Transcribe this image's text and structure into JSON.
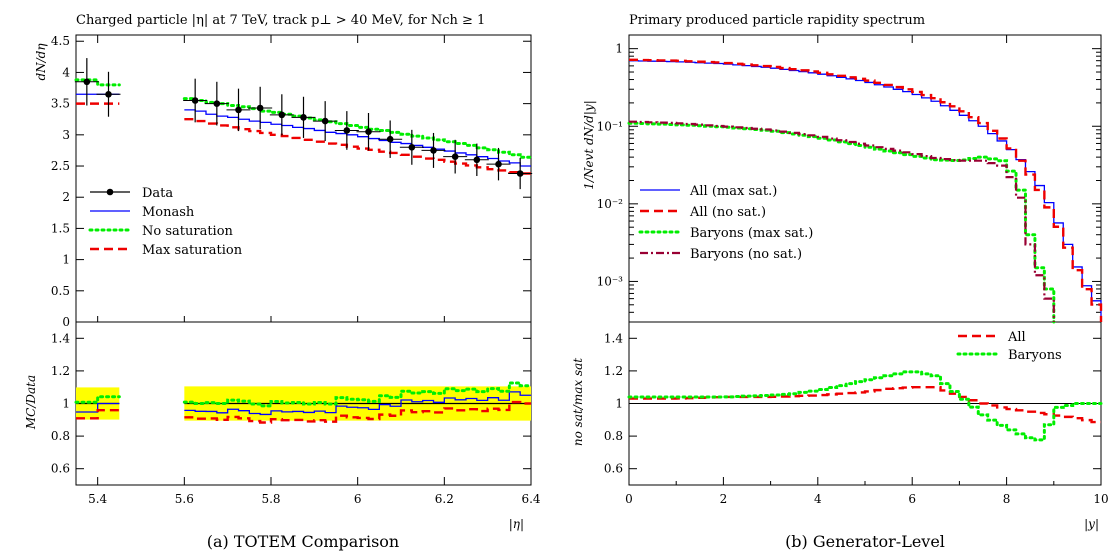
{
  "chart_data": [
    {
      "type": "line",
      "title": "Charged particle |η| at 7 TeV, track p⊥ > 40 MeV, for Nch ≥ 1",
      "caption": "(a) TOTEM Comparison",
      "xlabel": "|η|",
      "ylabel": "dN/dη",
      "ratio_ylabel": "MC/Data",
      "xlim": [
        5.35,
        6.4
      ],
      "ylim": [
        0,
        4.6
      ],
      "ratio_ylim": [
        0.5,
        1.5
      ],
      "xticks": [
        "5.4",
        "5.6",
        "5.8",
        "6",
        "6.2",
        "6.4"
      ],
      "yticks": [
        "0",
        "0.5",
        "1",
        "1.5",
        "2",
        "2.5",
        "3",
        "3.5",
        "4",
        "4.5"
      ],
      "ratio_yticks": [
        "0.6",
        "0.8",
        "1",
        "1.2",
        "1.4"
      ],
      "legend_position": "middle-left",
      "bins": [
        [
          5.35,
          5.4
        ],
        [
          5.4,
          5.45
        ],
        [
          5.6,
          5.625
        ],
        [
          5.625,
          5.65
        ],
        [
          5.65,
          5.675
        ],
        [
          5.675,
          5.7
        ],
        [
          5.7,
          5.725
        ],
        [
          5.725,
          5.75
        ],
        [
          5.75,
          5.775
        ],
        [
          5.775,
          5.8
        ],
        [
          5.8,
          5.825
        ],
        [
          5.825,
          5.85
        ],
        [
          5.85,
          5.875
        ],
        [
          5.875,
          5.9
        ],
        [
          5.9,
          5.925
        ],
        [
          5.925,
          5.95
        ],
        [
          5.95,
          5.975
        ],
        [
          5.975,
          6.0
        ],
        [
          6.0,
          6.025
        ],
        [
          6.025,
          6.05
        ],
        [
          6.05,
          6.075
        ],
        [
          6.075,
          6.1
        ],
        [
          6.1,
          6.125
        ],
        [
          6.125,
          6.15
        ],
        [
          6.15,
          6.175
        ],
        [
          6.175,
          6.2
        ],
        [
          6.2,
          6.225
        ],
        [
          6.225,
          6.25
        ],
        [
          6.25,
          6.275
        ],
        [
          6.275,
          6.3
        ],
        [
          6.3,
          6.325
        ],
        [
          6.325,
          6.35
        ],
        [
          6.35,
          6.375
        ],
        [
          6.375,
          6.4
        ]
      ],
      "data_points": {
        "name": "Data",
        "x": [
          5.375,
          5.425,
          5.625,
          5.675,
          5.725,
          5.775,
          5.825,
          5.875,
          5.925,
          5.975,
          6.025,
          6.075,
          6.125,
          6.175,
          6.225,
          6.275,
          6.325,
          6.375
        ],
        "y": [
          3.85,
          3.65,
          3.55,
          3.5,
          3.4,
          3.43,
          3.32,
          3.28,
          3.22,
          3.07,
          3.05,
          2.93,
          2.8,
          2.75,
          2.65,
          2.6,
          2.53,
          2.38
        ],
        "err": [
          0.38,
          0.36,
          0.35,
          0.35,
          0.34,
          0.34,
          0.33,
          0.33,
          0.32,
          0.31,
          0.3,
          0.3,
          0.28,
          0.28,
          0.27,
          0.26,
          0.26,
          0.25
        ]
      },
      "series": [
        {
          "name": "Monash",
          "color": "#0000ff",
          "style": "solid",
          "values": [
            3.65,
            3.65,
            3.4,
            3.38,
            3.33,
            3.3,
            3.28,
            3.25,
            3.22,
            3.2,
            3.17,
            3.15,
            3.12,
            3.1,
            3.07,
            3.04,
            3.02,
            3.0,
            2.97,
            2.94,
            2.91,
            2.88,
            2.86,
            2.83,
            2.8,
            2.77,
            2.74,
            2.71,
            2.68,
            2.65,
            2.62,
            2.58,
            2.55,
            2.5
          ]
        },
        {
          "name": "No saturation",
          "color": "#00ee00",
          "style": "dotted",
          "values": [
            3.88,
            3.8,
            3.58,
            3.55,
            3.52,
            3.5,
            3.47,
            3.45,
            3.42,
            3.38,
            3.36,
            3.33,
            3.3,
            3.27,
            3.24,
            3.21,
            3.18,
            3.15,
            3.12,
            3.09,
            3.07,
            3.04,
            3.01,
            2.98,
            2.95,
            2.92,
            2.89,
            2.86,
            2.83,
            2.79,
            2.76,
            2.72,
            2.68,
            2.64
          ]
        },
        {
          "name": "Max saturation",
          "color": "#ee0000",
          "style": "dashed",
          "values": [
            3.5,
            3.5,
            3.25,
            3.22,
            3.18,
            3.15,
            3.12,
            3.09,
            3.06,
            3.03,
            3.0,
            2.98,
            2.95,
            2.92,
            2.89,
            2.86,
            2.84,
            2.81,
            2.78,
            2.76,
            2.73,
            2.71,
            2.68,
            2.65,
            2.62,
            2.6,
            2.57,
            2.54,
            2.51,
            2.48,
            2.45,
            2.43,
            2.4,
            2.38
          ]
        }
      ],
      "legend": [
        "Data",
        "Monash",
        "No saturation",
        "Max saturation"
      ],
      "colors": {
        "data": "#000000",
        "band": "#ffff00"
      }
    },
    {
      "type": "line",
      "title": "Primary produced particle rapidity spectrum",
      "caption": "(b) Generator-Level",
      "xlabel": "|y|",
      "ylabel": "1/Nevt dN/d|y|",
      "ratio_ylabel": "no sat/max sat",
      "log_y": true,
      "xlim": [
        0,
        10
      ],
      "ylim": [
        0.0003,
        1.5
      ],
      "ratio_ylim": [
        0.5,
        1.5
      ],
      "xticks": [
        "0",
        "2",
        "4",
        "6",
        "8",
        "10"
      ],
      "yticks": [
        "1",
        "10⁻¹",
        "10⁻²",
        "10⁻³"
      ],
      "ratio_yticks": [
        "0.6",
        "0.8",
        "1",
        "1.2",
        "1.4"
      ],
      "legend_position": "bottom-left",
      "ratio_legend": [
        "All",
        "Baryons"
      ],
      "series": [
        {
          "name": "All (max sat.)",
          "color": "#0000ff",
          "style": "solid",
          "x": [
            0,
            1,
            2,
            3,
            4,
            5,
            6,
            6.5,
            7,
            7.5,
            8,
            8.4,
            8.8,
            9.2,
            9.6,
            10
          ],
          "y": [
            0.7,
            0.68,
            0.64,
            0.57,
            0.48,
            0.38,
            0.27,
            0.21,
            0.15,
            0.1,
            0.058,
            0.032,
            0.014,
            0.0042,
            0.0011,
            0.00045
          ]
        },
        {
          "name": "All (no sat.)",
          "color": "#ee0000",
          "style": "dashed",
          "x": [
            0,
            1,
            2,
            3,
            4,
            5,
            6,
            6.5,
            7,
            7.5,
            8,
            8.4,
            8.8,
            9.2,
            9.6,
            10
          ],
          "y": [
            0.72,
            0.7,
            0.66,
            0.59,
            0.5,
            0.4,
            0.29,
            0.23,
            0.17,
            0.11,
            0.062,
            0.03,
            0.012,
            0.0038,
            0.001,
            0.0004
          ]
        },
        {
          "name": "Baryons (max sat.)",
          "color": "#00ee00",
          "style": "dotted",
          "x": [
            0,
            1,
            2,
            3,
            4,
            5,
            6,
            6.5,
            7,
            7.5,
            8,
            8.3,
            8.5,
            8.7,
            8.9,
            9.0
          ],
          "y": [
            0.11,
            0.105,
            0.098,
            0.088,
            0.072,
            0.055,
            0.042,
            0.037,
            0.036,
            0.04,
            0.035,
            0.015,
            0.004,
            0.0015,
            0.0008,
            0.0003
          ]
        },
        {
          "name": "Baryons (no sat.)",
          "color": "#990033",
          "style": "dashdot",
          "x": [
            0,
            1,
            2,
            3,
            4,
            5,
            6,
            6.5,
            7,
            7.5,
            8,
            8.3,
            8.5,
            8.7,
            8.9,
            9.0
          ],
          "y": [
            0.115,
            0.11,
            0.1,
            0.09,
            0.075,
            0.058,
            0.045,
            0.039,
            0.036,
            0.036,
            0.03,
            0.012,
            0.003,
            0.0012,
            0.0006,
            0.0003
          ]
        }
      ],
      "ratio_series": [
        {
          "name": "All",
          "color": "#ee0000",
          "style": "dashed",
          "x": [
            0,
            1,
            2,
            3,
            4,
            5,
            5.5,
            6,
            6.5,
            7,
            7.5,
            8,
            8.5,
            9,
            9.5,
            10
          ],
          "y": [
            1.03,
            1.03,
            1.04,
            1.04,
            1.05,
            1.07,
            1.09,
            1.1,
            1.1,
            1.05,
            1.0,
            0.97,
            0.95,
            0.93,
            0.91,
            0.88
          ]
        },
        {
          "name": "Baryons",
          "color": "#00ee00",
          "style": "dotted",
          "x": [
            0,
            1,
            2,
            3,
            3.5,
            4,
            4.5,
            5,
            5.5,
            6,
            6.5,
            7,
            7.5,
            8,
            8.5,
            8.8,
            9,
            9.5,
            10
          ],
          "y": [
            1.04,
            1.04,
            1.04,
            1.05,
            1.06,
            1.08,
            1.11,
            1.14,
            1.17,
            1.2,
            1.17,
            1.05,
            0.93,
            0.85,
            0.79,
            0.77,
            0.97,
            1.0,
            1.0
          ]
        }
      ]
    }
  ]
}
